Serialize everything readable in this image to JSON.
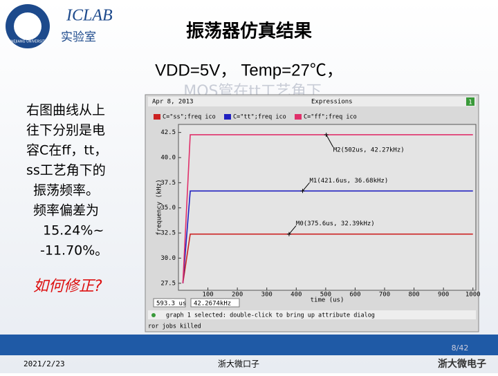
{
  "header": {
    "emblem_text": "ZHEJIANG UNIVERSITY",
    "logo_text": "ICLAB",
    "logo_subtitle": "实验室",
    "title": "振荡器仿真结果"
  },
  "conditions": "VDD=5V， Temp=27℃，",
  "hidden_line": "MOS管在tt工艺角下",
  "description": [
    "右图曲线从上",
    "往下分别是电",
    "容C在ff，tt，",
    "ss工艺角下的",
    "振荡频率。",
    "频率偏差为",
    "15.24%~",
    "-11.70%。"
  ],
  "question": "如何修正?",
  "plot": {
    "type": "line",
    "window_date": "Apr 8, 2013",
    "window_title": "Expressions",
    "window_badge": "1",
    "ylabel": "frequency (kHz)",
    "xlabel": "time (us)",
    "x": [
      15,
      40,
      1000
    ],
    "series": [
      {
        "name": "C=\"ss\";freq ico",
        "color": "#cc2222",
        "values": [
          27.5,
          32.39,
          32.39
        ]
      },
      {
        "name": "C=\"tt\";freq ico",
        "color": "#2020c0",
        "values": [
          27.5,
          36.68,
          36.68
        ]
      },
      {
        "name": "C=\"ff\";freq ico",
        "color": "#e0306a",
        "values": [
          27.5,
          42.27,
          42.27
        ]
      }
    ],
    "xlim": [
      0,
      1010
    ],
    "ylim": [
      26.8,
      43.3
    ],
    "xticks": [
      100,
      200,
      300,
      400,
      500,
      600,
      700,
      800,
      900,
      1000
    ],
    "yticks": [
      27.5,
      {
        "value": 30,
        "label": "30.0"
      },
      32.5,
      {
        "value": 35,
        "label": "35.0"
      },
      37.5,
      {
        "value": 40,
        "label": "40.0"
      },
      42.5
    ],
    "markers": [
      {
        "label": "M2(502us, 42.27kHz)",
        "x": 502,
        "y": 42.27
      },
      {
        "label": "M1(421.6us, 36.68kHz)",
        "x": 421.6,
        "y": 36.68
      },
      {
        "label": "M0(375.6us, 32.39kHz)",
        "x": 375.6,
        "y": 32.39
      }
    ],
    "cursor_x": "593.3 us",
    "cursor_y": "42.2674kHz",
    "message": "graph 1 selected: double-click to bring up attribute dialog",
    "log": "ror jobs killed"
  },
  "footer": {
    "page": "8/42",
    "date": "2021/2/23",
    "org": "浙大微口子",
    "logo": "浙大微电子"
  }
}
